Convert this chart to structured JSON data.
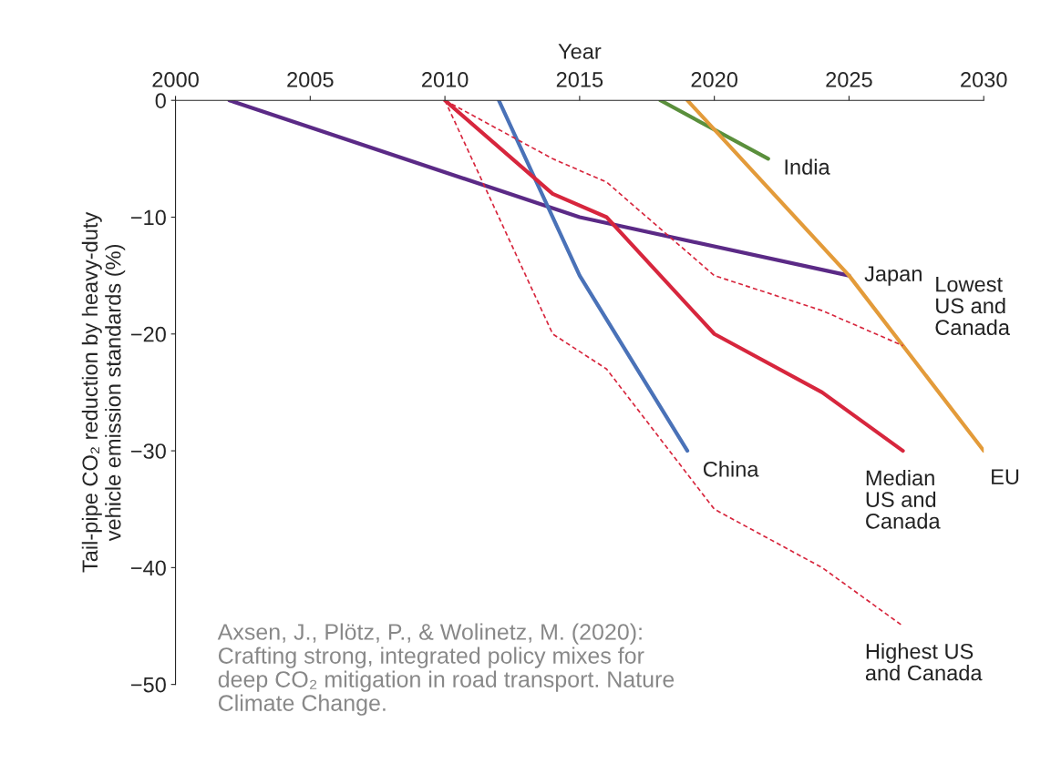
{
  "chart_data": {
    "type": "line",
    "xlabel": "Year",
    "ylabel": "Tail-pipe CO₂ reduction by heavy-duty\nvehicle emission standards (%)",
    "xlim": [
      2000,
      2030
    ],
    "xticks": [
      2000,
      2005,
      2010,
      2015,
      2020,
      2025,
      2030
    ],
    "ylim": [
      -50,
      0
    ],
    "yticks": [
      {
        "value": 0,
        "label": "0"
      },
      {
        "value": -10,
        "label": "−10"
      },
      {
        "value": -20,
        "label": "−20"
      },
      {
        "value": -30,
        "label": "−30"
      },
      {
        "value": -40,
        "label": "−40"
      },
      {
        "value": -50,
        "label": "−50"
      }
    ],
    "grid": false,
    "legend": false,
    "marker": "none",
    "series": [
      {
        "name": "Japan",
        "color": "#5b2a86",
        "line_style": "solid",
        "x": [
          2002,
          2015,
          2025
        ],
        "values": [
          0,
          -10,
          -15
        ]
      },
      {
        "name": "China",
        "color": "#4a72b8",
        "line_style": "solid",
        "x": [
          2012,
          2015,
          2019
        ],
        "values": [
          0,
          -15,
          -30
        ]
      },
      {
        "name": "India",
        "color": "#5a8f3c",
        "line_style": "solid",
        "x": [
          2018,
          2022
        ],
        "values": [
          0,
          -5
        ]
      },
      {
        "name": "EU",
        "color": "#e39b3a",
        "line_style": "solid",
        "x": [
          2019,
          2025,
          2030
        ],
        "values": [
          0,
          -15,
          -30
        ]
      },
      {
        "name": "Lowest\nUS and\nCanada",
        "color": "#d7263d",
        "line_style": "dashed",
        "x": [
          2010,
          2014,
          2016,
          2020,
          2024,
          2027
        ],
        "values": [
          0,
          -5,
          -7,
          -15,
          -18,
          -21
        ]
      },
      {
        "name": "Median\nUS and\nCanada",
        "color": "#d7263d",
        "line_style": "solid",
        "x": [
          2010,
          2014,
          2016,
          2020,
          2024,
          2027
        ],
        "values": [
          0,
          -8,
          -10,
          -20,
          -25,
          -30
        ]
      },
      {
        "name": "Highest US\nand Canada",
        "color": "#d7263d",
        "line_style": "dashed",
        "x": [
          2010,
          2014,
          2016,
          2020,
          2024,
          2027
        ],
        "values": [
          0,
          -20,
          -23,
          -35,
          -40,
          -45
        ]
      }
    ],
    "annotations": [
      "Axsen, J., Plötz, P., & Wolinetz, M. (2020): Crafting strong, integrated policy mixes for deep CO₂ mitigation in road transport. Nature Climate Change."
    ]
  }
}
